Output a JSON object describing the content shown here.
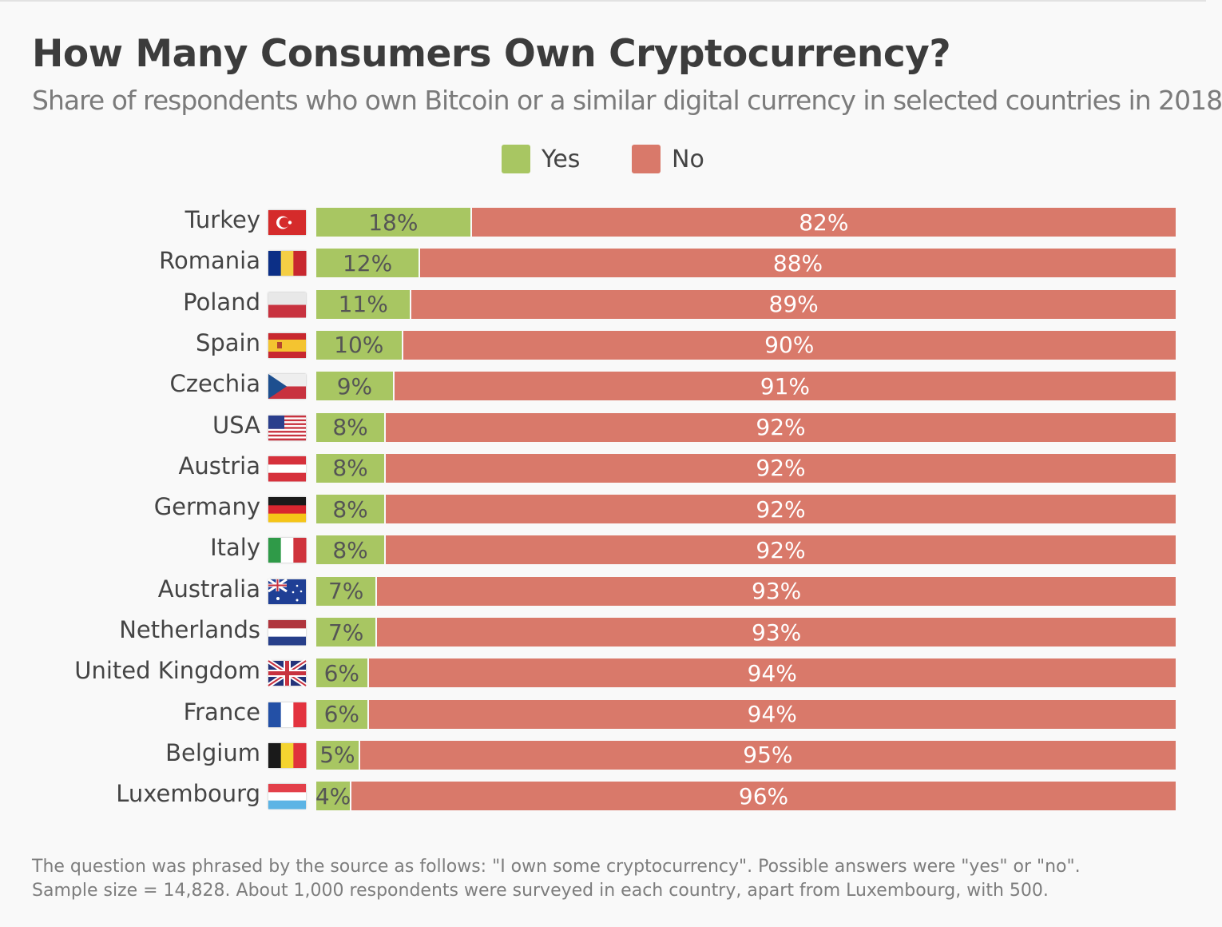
{
  "chart_data": {
    "type": "bar",
    "stacked": true,
    "orientation": "horizontal",
    "title": "How Many Consumers Own Cryptocurrency?",
    "subtitle": "Share of respondents who own Bitcoin or a similar digital currency in selected countries in 2018",
    "legend": [
      {
        "label": "Yes",
        "color": "#a8c662"
      },
      {
        "label": "No",
        "color": "#d9796a"
      }
    ],
    "legend_position": "top-center",
    "xlim": [
      0,
      100
    ],
    "categories": [
      "Turkey",
      "Romania",
      "Poland",
      "Spain",
      "Czechia",
      "USA",
      "Austria",
      "Germany",
      "Italy",
      "Australia",
      "Netherlands",
      "United Kingdom",
      "France",
      "Belgium",
      "Luxembourg"
    ],
    "series": [
      {
        "name": "Yes",
        "values": [
          18,
          12,
          11,
          10,
          9,
          8,
          8,
          8,
          8,
          7,
          7,
          6,
          6,
          5,
          4
        ],
        "labels": [
          "18%",
          "12%",
          "11%",
          "10%",
          "9%",
          "8%",
          "8%",
          "8%",
          "8%",
          "7%",
          "7%",
          "6%",
          "6%",
          "5%",
          "4%"
        ]
      },
      {
        "name": "No",
        "values": [
          82,
          88,
          89,
          90,
          91,
          92,
          92,
          92,
          92,
          93,
          93,
          94,
          94,
          95,
          96
        ],
        "labels": [
          "82%",
          "88%",
          "89%",
          "90%",
          "91%",
          "92%",
          "92%",
          "92%",
          "92%",
          "93%",
          "93%",
          "94%",
          "94%",
          "95%",
          "96%"
        ]
      }
    ],
    "flags": [
      {
        "icon": "flag-turkey-icon",
        "dir": "turkey",
        "colors": [
          "#d52b2b",
          "#ffffff"
        ]
      },
      {
        "icon": "flag-romania-icon",
        "dir": "v",
        "colors": [
          "#0c2f86",
          "#f5cf45",
          "#c8282f"
        ]
      },
      {
        "icon": "flag-poland-icon",
        "dir": "h",
        "colors": [
          "#e8e8e8",
          "#c8323f"
        ]
      },
      {
        "icon": "flag-spain-icon",
        "dir": "spain",
        "colors": [
          "#c8282f",
          "#f4c430",
          "#c8282f"
        ]
      },
      {
        "icon": "flag-czechia-icon",
        "dir": "czech",
        "colors": [
          "#eeeeee",
          "#c8323f",
          "#1d4f8f"
        ]
      },
      {
        "icon": "flag-usa-icon",
        "dir": "usa",
        "colors": [
          "#c8323f",
          "#ffffff",
          "#2a3e8c"
        ]
      },
      {
        "icon": "flag-austria-icon",
        "dir": "h",
        "colors": [
          "#d6313c",
          "#ffffff",
          "#d6313c"
        ]
      },
      {
        "icon": "flag-germany-icon",
        "dir": "h",
        "colors": [
          "#1a1a1a",
          "#d8262f",
          "#f5c518"
        ]
      },
      {
        "icon": "flag-italy-icon",
        "dir": "v",
        "colors": [
          "#2f9a48",
          "#ffffff",
          "#cf333c"
        ]
      },
      {
        "icon": "flag-australia-icon",
        "dir": "aus",
        "colors": [
          "#1f3f95",
          "#ffffff",
          "#c8323f"
        ]
      },
      {
        "icon": "flag-netherlands-icon",
        "dir": "h",
        "colors": [
          "#b0353d",
          "#ffffff",
          "#273f8a"
        ]
      },
      {
        "icon": "flag-uk-icon",
        "dir": "uk",
        "colors": [
          "#24337a",
          "#ffffff",
          "#c8323f"
        ]
      },
      {
        "icon": "flag-france-icon",
        "dir": "v",
        "colors": [
          "#2350a6",
          "#ffffff",
          "#e3333f"
        ]
      },
      {
        "icon": "flag-belgium-icon",
        "dir": "v",
        "colors": [
          "#1a1a1a",
          "#f5d430",
          "#e0323c"
        ]
      },
      {
        "icon": "flag-luxembourg-icon",
        "dir": "h",
        "colors": [
          "#e3404a",
          "#ffffff",
          "#5cb4e5"
        ]
      }
    ]
  },
  "footer": {
    "line1": "The question was phrased by the source as follows: \"I own some cryptocurrency\". Possible answers were \"yes\" or \"no\".",
    "line2": "Sample size = 14,828. About 1,000 respondents were surveyed in each country, apart from Luxembourg, with 500."
  }
}
